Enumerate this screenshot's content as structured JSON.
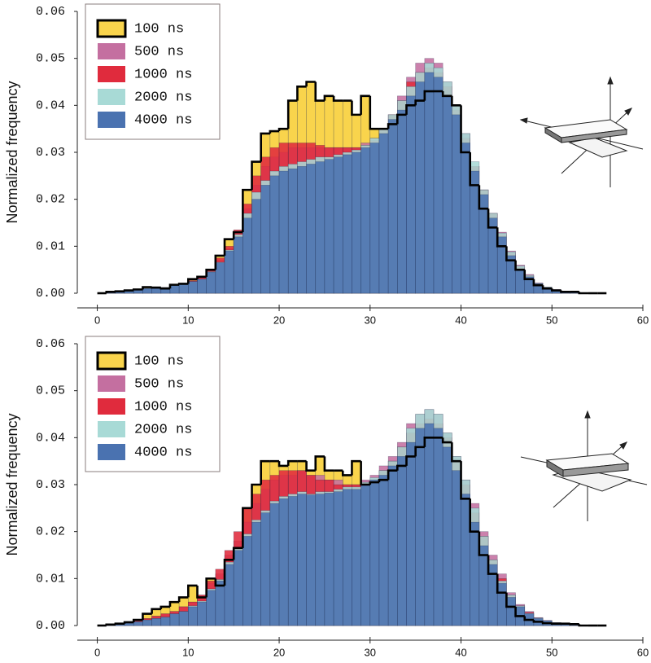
{
  "chart_data": [
    {
      "type": "histogram",
      "ylabel": "Normalized frequency",
      "xlim": [
        -2.2,
        60
      ],
      "ylim": [
        0,
        0.06
      ],
      "xticks": [
        0,
        10,
        20,
        30,
        40,
        50,
        60
      ],
      "yticks": [
        {
          "value": 0,
          "label": "0.00"
        },
        {
          "value": 0.01,
          "label": "0.01"
        },
        {
          "value": 0.02,
          "label": "0.02"
        },
        {
          "value": 0.03,
          "label": "0.03"
        },
        {
          "value": 0.04,
          "label": "0.04"
        },
        {
          "value": 0.05,
          "label": "0.05"
        },
        {
          "value": 0.06,
          "label": "0.06"
        }
      ],
      "legend": "upper left",
      "bins": [
        0,
        1,
        2,
        3,
        4,
        5,
        6,
        7,
        8,
        9,
        10,
        11,
        12,
        13,
        14,
        15,
        16,
        17,
        18,
        19,
        20,
        21,
        22,
        23,
        24,
        25,
        26,
        27,
        28,
        29,
        30,
        31,
        32,
        33,
        34,
        35,
        36,
        37,
        38,
        39,
        40,
        41,
        42,
        43,
        44,
        45,
        46,
        47,
        48,
        49,
        50,
        51,
        52,
        53,
        54,
        55,
        56
      ],
      "series": [
        {
          "name": "100 ns",
          "color": "#f9d44c",
          "edgecolor": "#000000",
          "values": [
            0,
            0.0003,
            0.0004,
            0.0006,
            0.0008,
            0.0013,
            0.0012,
            0.001,
            0.0018,
            0.002,
            0.003,
            0.0035,
            0.005,
            0.008,
            0.0115,
            0.013,
            0.022,
            0.028,
            0.034,
            0.0345,
            0.035,
            0.041,
            0.044,
            0.045,
            0.041,
            0.042,
            0.041,
            0.041,
            0.038,
            0.042,
            0.035,
            0.035,
            0.036,
            0.038,
            0.04,
            0.041,
            0.043,
            0.043,
            0.042,
            0.04,
            0.03,
            0.023,
            0.018,
            0.014,
            0.01,
            0.007,
            0.005,
            0.003,
            0.0017,
            0.001,
            0.0006,
            0.0003,
            0.0003,
            0,
            0,
            0
          ]
        },
        {
          "name": "500 ns",
          "color": "#c46fa0",
          "values": [
            0,
            0.0003,
            0.0004,
            0.0005,
            0.0007,
            0.001,
            0.001,
            0.0012,
            0.0017,
            0.002,
            0.0026,
            0.0032,
            0.0048,
            0.007,
            0.0095,
            0.013,
            0.018,
            0.023,
            0.027,
            0.029,
            0.03,
            0.031,
            0.031,
            0.031,
            0.031,
            0.031,
            0.031,
            0.031,
            0.031,
            0.032,
            0.033,
            0.035,
            0.038,
            0.042,
            0.046,
            0.049,
            0.05,
            0.049,
            0.045,
            0.04,
            0.034,
            0.027,
            0.022,
            0.017,
            0.013,
            0.009,
            0.006,
            0.004,
            0.0022,
            0.0013,
            0.0008,
            0.0004,
            0.0002,
            0.0001,
            0,
            0
          ]
        },
        {
          "name": "1000 ns",
          "color": "#e02b3d",
          "values": [
            0,
            0.0003,
            0.0004,
            0.0005,
            0.0007,
            0.001,
            0.001,
            0.0012,
            0.0017,
            0.002,
            0.0027,
            0.0033,
            0.005,
            0.0075,
            0.01,
            0.0135,
            0.019,
            0.025,
            0.029,
            0.031,
            0.032,
            0.032,
            0.032,
            0.032,
            0.0315,
            0.031,
            0.031,
            0.031,
            0.031,
            0.0315,
            0.0325,
            0.035,
            0.038,
            0.041,
            0.045,
            0.047,
            0.048,
            0.047,
            0.044,
            0.039,
            0.033,
            0.027,
            0.022,
            0.017,
            0.0125,
            0.0085,
            0.0055,
            0.0037,
            0.002,
            0.0012,
            0.0007,
            0.0004,
            0.0002,
            0.0001,
            0,
            0
          ]
        },
        {
          "name": "2000 ns",
          "color": "#a8dad6",
          "values": [
            0,
            0.0003,
            0.0004,
            0.0005,
            0.0007,
            0.001,
            0.001,
            0.0012,
            0.0017,
            0.002,
            0.0025,
            0.003,
            0.0046,
            0.0066,
            0.0092,
            0.0125,
            0.017,
            0.0215,
            0.024,
            0.026,
            0.027,
            0.0275,
            0.028,
            0.0285,
            0.029,
            0.029,
            0.0295,
            0.03,
            0.0305,
            0.0315,
            0.033,
            0.035,
            0.038,
            0.041,
            0.044,
            0.047,
            0.049,
            0.048,
            0.045,
            0.04,
            0.034,
            0.028,
            0.022,
            0.017,
            0.0128,
            0.0088,
            0.0058,
            0.0038,
            0.0021,
            0.0013,
            0.0007,
            0.0004,
            0.0002,
            0.0001,
            0,
            0
          ]
        },
        {
          "name": "4000 ns",
          "color": "#4a72b0",
          "values": [
            0,
            0.0003,
            0.0004,
            0.0005,
            0.0007,
            0.001,
            0.001,
            0.0012,
            0.0017,
            0.002,
            0.0025,
            0.003,
            0.0045,
            0.0065,
            0.009,
            0.012,
            0.016,
            0.02,
            0.023,
            0.025,
            0.026,
            0.0265,
            0.027,
            0.0275,
            0.028,
            0.0285,
            0.029,
            0.0295,
            0.03,
            0.031,
            0.032,
            0.034,
            0.037,
            0.039,
            0.042,
            0.045,
            0.047,
            0.046,
            0.042,
            0.038,
            0.032,
            0.026,
            0.021,
            0.016,
            0.012,
            0.008,
            0.005,
            0.0035,
            0.002,
            0.0012,
            0.0007,
            0.0004,
            0.0002,
            0.0001,
            0,
            0
          ]
        }
      ]
    },
    {
      "type": "histogram",
      "ylabel": "Normalized frequency",
      "xlim": [
        -2.2,
        60
      ],
      "ylim": [
        0,
        0.06
      ],
      "xticks": [
        0,
        10,
        20,
        30,
        40,
        50,
        60
      ],
      "yticks": [
        {
          "value": 0,
          "label": "0.00"
        },
        {
          "value": 0.01,
          "label": "0.01"
        },
        {
          "value": 0.02,
          "label": "0.02"
        },
        {
          "value": 0.03,
          "label": "0.03"
        },
        {
          "value": 0.04,
          "label": "0.04"
        },
        {
          "value": 0.05,
          "label": "0.05"
        },
        {
          "value": 0.06,
          "label": "0.06"
        }
      ],
      "legend": "upper left",
      "bins": [
        0,
        1,
        2,
        3,
        4,
        5,
        6,
        7,
        8,
        9,
        10,
        11,
        12,
        13,
        14,
        15,
        16,
        17,
        18,
        19,
        20,
        21,
        22,
        23,
        24,
        25,
        26,
        27,
        28,
        29,
        30,
        31,
        32,
        33,
        34,
        35,
        36,
        37,
        38,
        39,
        40,
        41,
        42,
        43,
        44,
        45,
        46,
        47,
        48,
        49,
        50,
        51,
        52,
        53,
        54,
        55,
        56
      ],
      "series": [
        {
          "name": "100 ns",
          "color": "#f9d44c",
          "edgecolor": "#000000",
          "values": [
            0,
            0.0002,
            0.0004,
            0.0007,
            0.0012,
            0.0025,
            0.0035,
            0.004,
            0.005,
            0.006,
            0.0085,
            0.006,
            0.01,
            0.0085,
            0.014,
            0.0165,
            0.025,
            0.03,
            0.035,
            0.035,
            0.034,
            0.035,
            0.035,
            0.033,
            0.036,
            0.033,
            0.033,
            0.032,
            0.035,
            0.03,
            0.0305,
            0.031,
            0.033,
            0.034,
            0.036,
            0.038,
            0.04,
            0.04,
            0.039,
            0.035,
            0.027,
            0.02,
            0.015,
            0.011,
            0.007,
            0.004,
            0.002,
            0.0012,
            0.0008,
            0.0005,
            0.0004,
            0.0004,
            0.0003,
            0,
            0,
            0
          ]
        },
        {
          "name": "500 ns",
          "color": "#c46fa0",
          "values": [
            0,
            0.0002,
            0.0003,
            0.0005,
            0.001,
            0.0015,
            0.002,
            0.0025,
            0.003,
            0.004,
            0.005,
            0.0065,
            0.009,
            0.011,
            0.015,
            0.018,
            0.022,
            0.026,
            0.029,
            0.031,
            0.032,
            0.032,
            0.033,
            0.032,
            0.032,
            0.031,
            0.031,
            0.03,
            0.03,
            0.031,
            0.032,
            0.034,
            0.036,
            0.039,
            0.043,
            0.045,
            0.046,
            0.045,
            0.041,
            0.036,
            0.031,
            0.026,
            0.02,
            0.015,
            0.011,
            0.007,
            0.0045,
            0.003,
            0.0017,
            0.0011,
            0.0006,
            0.0003,
            0.0002,
            0.0001,
            0,
            0
          ]
        },
        {
          "name": "1000 ns",
          "color": "#e02b3d",
          "values": [
            0,
            0.0002,
            0.0003,
            0.0005,
            0.001,
            0.0015,
            0.002,
            0.0025,
            0.003,
            0.004,
            0.005,
            0.0065,
            0.0095,
            0.012,
            0.016,
            0.02,
            0.025,
            0.028,
            0.031,
            0.032,
            0.033,
            0.033,
            0.033,
            0.032,
            0.031,
            0.031,
            0.03,
            0.03,
            0.03,
            0.0305,
            0.031,
            0.033,
            0.035,
            0.038,
            0.041,
            0.043,
            0.044,
            0.043,
            0.04,
            0.035,
            0.03,
            0.024,
            0.019,
            0.014,
            0.01,
            0.0065,
            0.0042,
            0.0028,
            0.0016,
            0.001,
            0.0006,
            0.0003,
            0.0002,
            0.0001,
            0,
            0
          ]
        },
        {
          "name": "2000 ns",
          "color": "#a8dad6",
          "values": [
            0,
            0.0002,
            0.0003,
            0.0005,
            0.0008,
            0.0012,
            0.0015,
            0.0018,
            0.0025,
            0.003,
            0.0042,
            0.0052,
            0.0078,
            0.0098,
            0.0135,
            0.0165,
            0.0195,
            0.0225,
            0.0245,
            0.0265,
            0.0275,
            0.028,
            0.0285,
            0.028,
            0.0285,
            0.0285,
            0.029,
            0.0295,
            0.0295,
            0.0305,
            0.0315,
            0.033,
            0.035,
            0.038,
            0.042,
            0.045,
            0.046,
            0.045,
            0.041,
            0.036,
            0.031,
            0.025,
            0.019,
            0.014,
            0.0095,
            0.0065,
            0.0042,
            0.0026,
            0.0016,
            0.001,
            0.0006,
            0.0003,
            0.0002,
            0.0001,
            0,
            0
          ]
        },
        {
          "name": "4000 ns",
          "color": "#4a72b0",
          "values": [
            0,
            0.0002,
            0.0003,
            0.0005,
            0.0008,
            0.0012,
            0.0015,
            0.0018,
            0.0025,
            0.003,
            0.004,
            0.005,
            0.0075,
            0.0095,
            0.013,
            0.016,
            0.019,
            0.022,
            0.024,
            0.026,
            0.027,
            0.0275,
            0.028,
            0.0278,
            0.028,
            0.0282,
            0.0285,
            0.029,
            0.029,
            0.03,
            0.031,
            0.032,
            0.034,
            0.036,
            0.039,
            0.042,
            0.043,
            0.042,
            0.038,
            0.033,
            0.028,
            0.022,
            0.017,
            0.013,
            0.009,
            0.006,
            0.004,
            0.0025,
            0.0015,
            0.001,
            0.0006,
            0.0003,
            0.0002,
            0.0001,
            0,
            0
          ]
        }
      ]
    }
  ]
}
